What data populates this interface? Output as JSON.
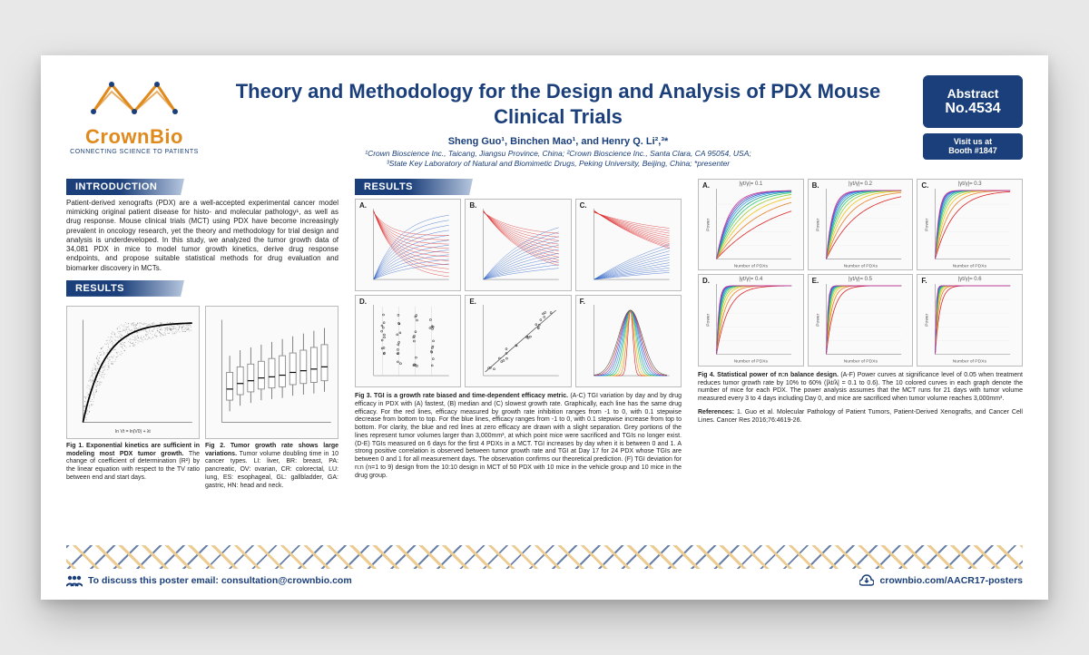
{
  "brand": {
    "name": "CrownBio",
    "tagline": "CONNECTING SCIENCE TO PATIENTS",
    "logo_stroke": "#e08a1e",
    "logo_dot": "#1b3f7a"
  },
  "header": {
    "title": "Theory and Methodology for the Design and Analysis of PDX Mouse Clinical Trials",
    "authors": "Sheng Guo¹, Binchen Mao¹, and Henry Q. Li²,³*",
    "affiliations": "¹Crown Bioscience Inc., Taicang, Jiangsu Province, China; ²Crown Bioscience Inc., Santa Clara, CA 95054, USA;\n³State Key Laboratory of Natural and Biomimetic Drugs, Peking University, Beijing, China; *presenter",
    "abstract_label": "Abstract",
    "abstract_no": "No.4534",
    "booth_line1": "Visit us at",
    "booth_line2": "Booth #1847"
  },
  "sections": {
    "introduction_label": "INTRODUCTION",
    "results_label": "RESULTS",
    "intro_text": "Patient-derived xenografts (PDX) are a well-accepted experimental cancer model mimicking original patient disease for histo- and molecular pathology¹, as well as drug response. Mouse clinical trials (MCT) using PDX have become increasingly prevalent in oncology research, yet the theory and methodology for trial design and analysis is underdeveloped. In this study, we analyzed the tumor growth data of 34,081 PDX in mice to model tumor growth kinetics, derive drug response endpoints, and propose suitable statistical methods for drug evaluation and biomarker discovery in MCTs."
  },
  "fig1": {
    "caption_bold": "Fig 1. Exponential kinetics are sufficient in modeling most PDX tumor growth.",
    "caption_rest": " The change of coefficient of determination (R²) by the linear equation with respect to the TV ratio between end and start days.",
    "axis_label": "ln Vt = ln(V0) + λt",
    "scatter_color": "#3a3a3a",
    "curve_color": "#000000",
    "n_points": 900
  },
  "fig2": {
    "caption_bold": "Fig 2. Tumor growth rate shows large variations.",
    "caption_rest": " Tumor volume doubling time in 10 cancer types. LI: liver, BR: breast, PA: pancreatic, OV: ovarian, CR: colorectal, LU: lung, ES: esophageal, GL: gallbladder, GA: gastric, HN: head and neck.",
    "categories": [
      "LI",
      "BR",
      "PA",
      "OV",
      "CR",
      "LU",
      "ES",
      "GL",
      "GA",
      "HN"
    ],
    "medians": [
      6,
      7,
      7.5,
      8,
      8.2,
      8.5,
      9,
      9.3,
      9.6,
      10
    ],
    "q1": [
      4,
      5,
      5.5,
      6,
      6.2,
      6.4,
      6.8,
      7,
      7.2,
      7.5
    ],
    "q3": [
      9,
      10,
      10.5,
      11,
      11.5,
      12,
      12.5,
      13,
      13.5,
      14
    ],
    "box_color": "#888888"
  },
  "fig3": {
    "panel_labels": [
      "A.",
      "B.",
      "C.",
      "D.",
      "E.",
      "F."
    ],
    "top_type": "decay_curves",
    "decay": {
      "n_lines": 11,
      "red": "#d22",
      "blue": "#2a60c8",
      "xlim": [
        0,
        30
      ],
      "ylim": [
        0,
        1
      ]
    },
    "D": {
      "type": "scatter_box",
      "color": "#333"
    },
    "E": {
      "type": "scatter_corr",
      "color": "#333",
      "fit": "#555"
    },
    "F": {
      "type": "density_rainbow",
      "colors": [
        "#d22",
        "#e67e22",
        "#f1c40f",
        "#2ecc71",
        "#16a085",
        "#2a9df4",
        "#2a60c8",
        "#7b3fc4",
        "#c0392b",
        "#555"
      ]
    },
    "caption_bold": "Fig 3. TGI is a growth rate biased and time-dependent efficacy metric.",
    "caption_rest": " (A-C) TGI variation by day and by drug efficacy in PDX with (A) fastest, (B) median and (C) slowest growth rate. Graphically, each line has the same drug efficacy. For the red lines, efficacy measured by growth rate inhibition ranges from -1 to 0, with 0.1 stepwise decrease from bottom to top. For the blue lines, efficacy ranges from -1 to 0, with 0.1 stepwise increase from top to bottom. For clarity, the blue and red lines at zero efficacy are drawn with a slight separation. Grey portions of the lines represent tumor volumes larger than 3,000mm³, at which point mice were sacrificed and TGIs no longer exist. (D-E) TGIs measured on 6 days for the first 4 PDXs in a MCT. TGI increases by day when it is between 0 and 1. A strong positive correlation is observed between tumor growth rate and TGI at Day 17 for 24 PDX whose TGIs are between 0 and 1 for all measurement days. The observation confirms our theoretical prediction. (F) TGI deviation for n:n (n=1 to 9) design from the 10:10 design in MCT of 50 PDX with 10 mice in the vehicle group and 10 mice in the drug group."
  },
  "fig4": {
    "panel_labels": [
      "A.",
      "B.",
      "C.",
      "D.",
      "E.",
      "F."
    ],
    "panel_titles": [
      "|γt/γ|= 0.1",
      "|γt/γ|= 0.2",
      "|γt/γ|= 0.3",
      "|γt/γ|= 0.4",
      "|γt/γ|= 0.5",
      "|γt/γ|= 0.6"
    ],
    "x_label": "Number of PDXs",
    "y_label": "Power",
    "xlim": [
      0,
      50
    ],
    "ylim": [
      0,
      1
    ],
    "line_colors": [
      "#d22",
      "#e67e22",
      "#f1c40f",
      "#9acd32",
      "#2ecc71",
      "#16a085",
      "#2a9df4",
      "#2a60c8",
      "#7b3fc4",
      "#c43f92"
    ],
    "steepness": [
      0.06,
      0.12,
      0.2,
      0.32,
      0.5,
      0.8
    ],
    "caption_bold": "Fig 4. Statistical power of n:n balance design.",
    "caption_rest": " (A-F) Power curves at significance level of 0.05 when treatment reduces tumor growth rate by 10% to 60% (|λt/λ| = 0.1 to 0.6). The 10 colored curves in each graph denote the number of mice for each PDX. The power analysis assumes that the MCT runs for 21 days with tumor volume measured every 3 to 4 days including Day 0, and mice are sacrificed when tumor volume reaches 3,000mm³."
  },
  "references": {
    "label": "References:",
    "text": "1. Guo et al. Molecular Pathology of Patient Tumors, Patient-Derived Xenografts, and Cancer Cell Lines. Cancer Res 2016;76:4619-26."
  },
  "footer": {
    "left": "To discuss this poster email: consultation@crownbio.com",
    "right": "crownbio.com/AACR17-posters"
  },
  "colors": {
    "brand_blue": "#1b3f7a",
    "brand_gold": "#e08a1e",
    "panel_border": "#bbbbbb"
  }
}
